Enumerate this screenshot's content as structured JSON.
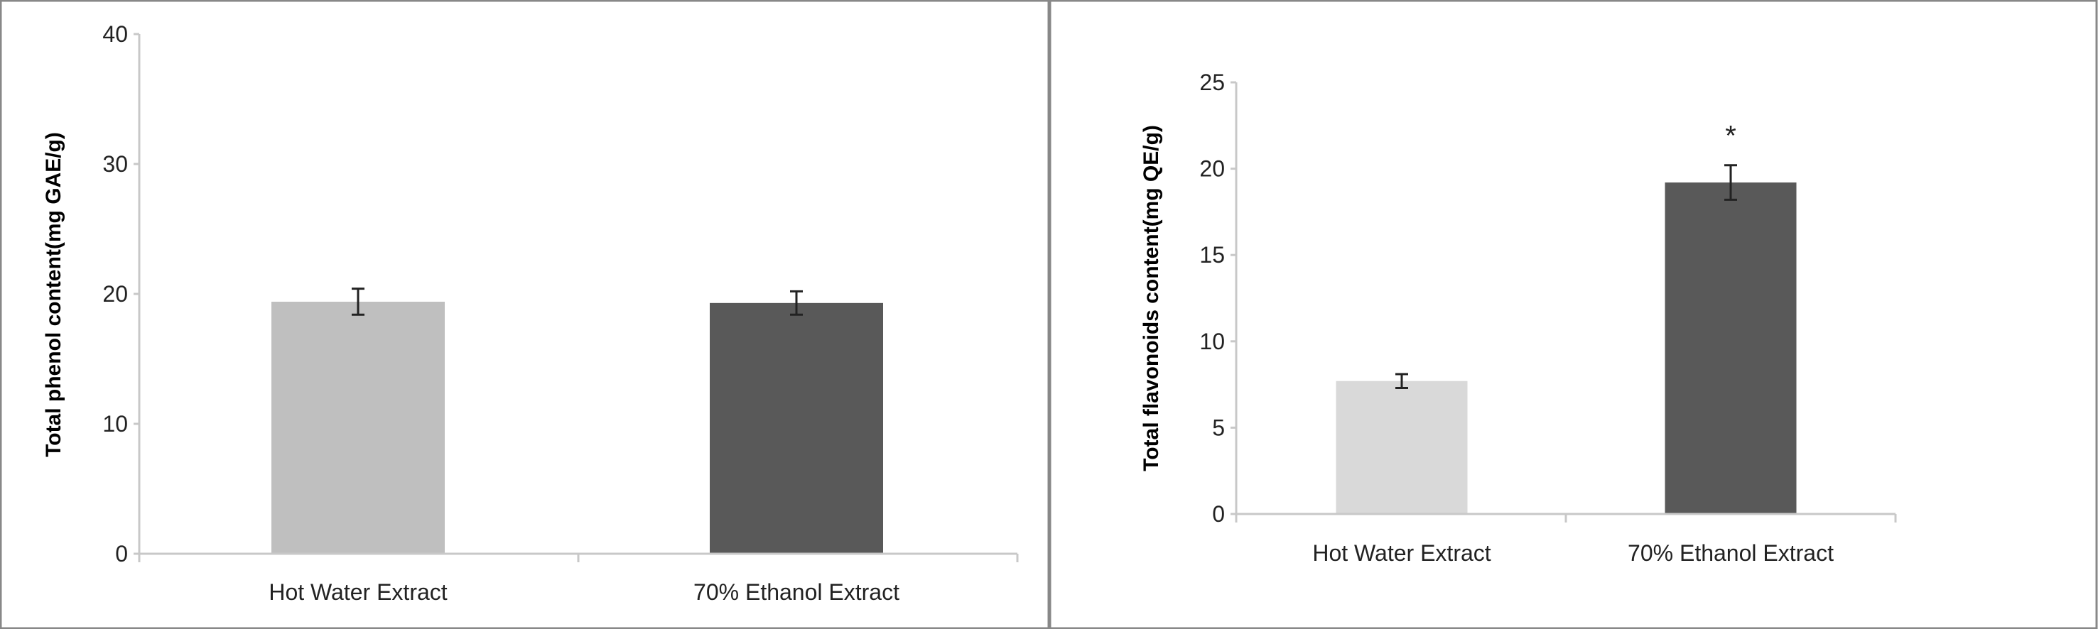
{
  "chart_data": [
    {
      "type": "bar",
      "categories": [
        "Hot Water Extract",
        "70% Ethanol Extract"
      ],
      "values": [
        19.4,
        19.3
      ],
      "errors": [
        1.0,
        0.9
      ],
      "colors": [
        "#bfbfbf",
        "#595959"
      ],
      "xlabel": "",
      "ylabel": "Total phenol content(mg GAE/g)",
      "ylim": [
        0,
        40
      ],
      "yticks": [
        "0",
        "10",
        "20",
        "30",
        "40"
      ],
      "annotations": [],
      "grid": false
    },
    {
      "type": "bar",
      "categories": [
        "Hot Water Extract",
        "70% Ethanol Extract"
      ],
      "values": [
        7.7,
        19.2
      ],
      "errors": [
        0.4,
        1.0
      ],
      "colors": [
        "#d9d9d9",
        "#595959"
      ],
      "xlabel": "",
      "ylabel": "Total flavonoids content(mg QE/g)",
      "ylim": [
        0,
        25
      ],
      "yticks": [
        "0",
        "5",
        "10",
        "15",
        "20",
        "25"
      ],
      "annotations": [
        "",
        "*"
      ],
      "grid": false
    }
  ]
}
